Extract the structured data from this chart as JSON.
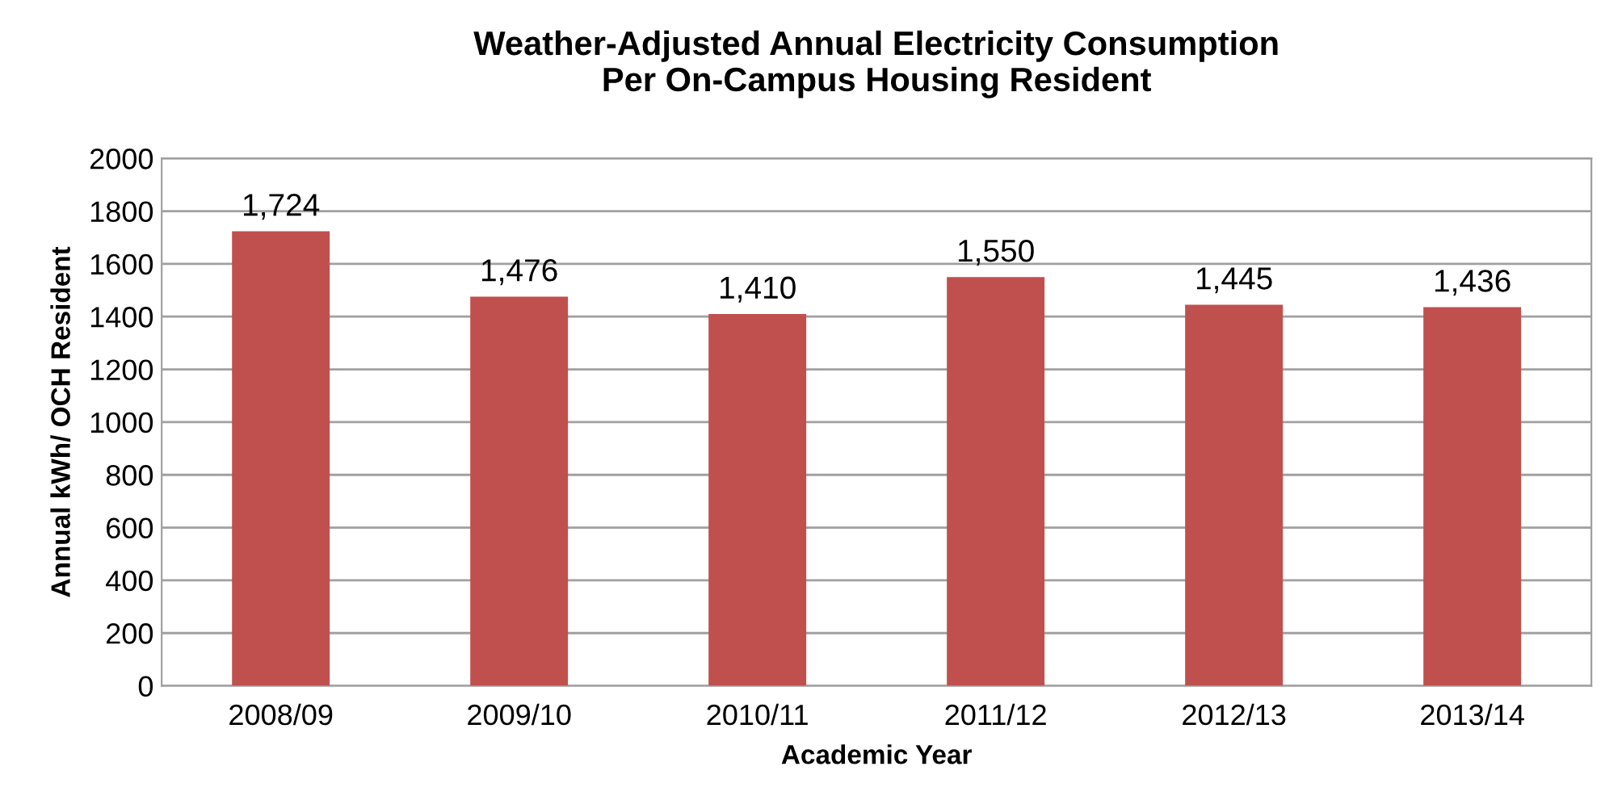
{
  "chart_data": {
    "type": "bar",
    "title": "Weather-Adjusted Annual Electricity Consumption\nPer On-Campus Housing Resident",
    "xlabel": "Academic Year",
    "ylabel": "Annual kWh/ OCH Resident",
    "categories": [
      "2008/09",
      "2009/10",
      "2010/11",
      "2011/12",
      "2012/13",
      "2013/14"
    ],
    "values": [
      1724,
      1476,
      1410,
      1550,
      1445,
      1436
    ],
    "value_labels": [
      "1,724",
      "1,476",
      "1,410",
      "1,550",
      "1,445",
      "1,436"
    ],
    "color": "#c0504d",
    "ylim": [
      0,
      2000
    ],
    "yticks": [
      0,
      200,
      400,
      600,
      800,
      1000,
      1200,
      1400,
      1600,
      1800,
      2000
    ],
    "grid": "y",
    "legend": false
  }
}
